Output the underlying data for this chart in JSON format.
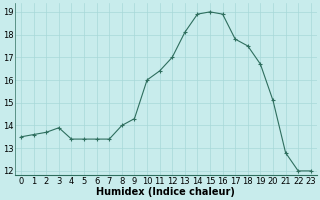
{
  "x": [
    0,
    1,
    2,
    3,
    4,
    5,
    6,
    7,
    8,
    9,
    10,
    11,
    12,
    13,
    14,
    15,
    16,
    17,
    18,
    19,
    20,
    21,
    22,
    23
  ],
  "y": [
    13.5,
    13.6,
    13.7,
    13.9,
    13.4,
    13.4,
    13.4,
    13.4,
    14.0,
    14.3,
    16.0,
    16.4,
    17.0,
    18.1,
    18.9,
    19.0,
    18.9,
    17.8,
    17.5,
    16.7,
    15.1,
    12.8,
    12.0,
    12.0
  ],
  "line_color": "#2e6e5e",
  "marker": "+",
  "marker_size": 3,
  "background_color": "#c8ecec",
  "grid_color": "#a8d8d8",
  "xlabel": "Humidex (Indice chaleur)",
  "xlabel_fontsize": 7,
  "tick_fontsize": 6,
  "xlim": [
    -0.5,
    23.5
  ],
  "ylim": [
    11.8,
    19.4
  ],
  "yticks": [
    12,
    13,
    14,
    15,
    16,
    17,
    18,
    19
  ],
  "xticks": [
    0,
    1,
    2,
    3,
    4,
    5,
    6,
    7,
    8,
    9,
    10,
    11,
    12,
    13,
    14,
    15,
    16,
    17,
    18,
    19,
    20,
    21,
    22,
    23
  ]
}
